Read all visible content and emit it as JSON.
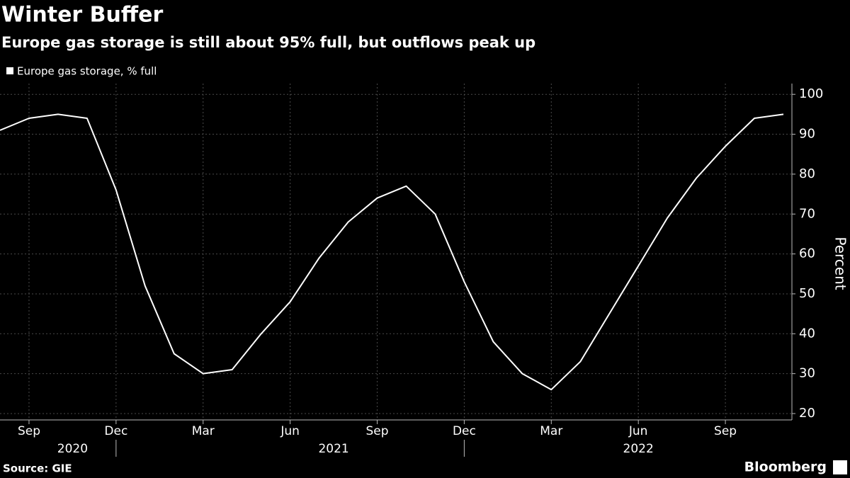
{
  "chart_data": {
    "type": "line",
    "title": "Winter Buffer",
    "subtitle": "Europe gas storage is still about 95% full, but outflows peak up",
    "y_label": "Percent",
    "source": "Source: GIE",
    "brand": "Bloomberg",
    "x": [
      "2020-08",
      "2020-09",
      "2020-10",
      "2020-11",
      "2020-12",
      "2021-01",
      "2021-02",
      "2021-03",
      "2021-04",
      "2021-05",
      "2021-06",
      "2021-07",
      "2021-08",
      "2021-09",
      "2021-10",
      "2021-11",
      "2021-12",
      "2022-01",
      "2022-02",
      "2022-03",
      "2022-04",
      "2022-05",
      "2022-06",
      "2022-07",
      "2022-08",
      "2022-09",
      "2022-10",
      "2022-11"
    ],
    "series": [
      {
        "name": "Europe gas storage, % full",
        "color": "#ffffff",
        "values": [
          91,
          94,
          95,
          94,
          76,
          52,
          35,
          30,
          31,
          40,
          48,
          59,
          68,
          74,
          77,
          70,
          53,
          38,
          30,
          26,
          33,
          45,
          57,
          69,
          79,
          87,
          94,
          95
        ]
      }
    ],
    "xlim": [
      "2020-08",
      "2022-11"
    ],
    "xticks": [
      {
        "value": "2020-09",
        "label": "Sep"
      },
      {
        "value": "2020-12",
        "label": "Dec"
      },
      {
        "value": "2021-03",
        "label": "Mar"
      },
      {
        "value": "2021-06",
        "label": "Jun"
      },
      {
        "value": "2021-09",
        "label": "Sep"
      },
      {
        "value": "2021-12",
        "label": "Dec"
      },
      {
        "value": "2022-03",
        "label": "Mar"
      },
      {
        "value": "2022-06",
        "label": "Jun"
      },
      {
        "value": "2022-09",
        "label": "Sep"
      }
    ],
    "years": [
      "2020",
      "2021",
      "2022"
    ],
    "ylim": [
      18.4,
      102.7
    ],
    "yticks": [
      20,
      30,
      40,
      50,
      60,
      70,
      80,
      90,
      100
    ],
    "grid": true,
    "background": "#000000"
  }
}
